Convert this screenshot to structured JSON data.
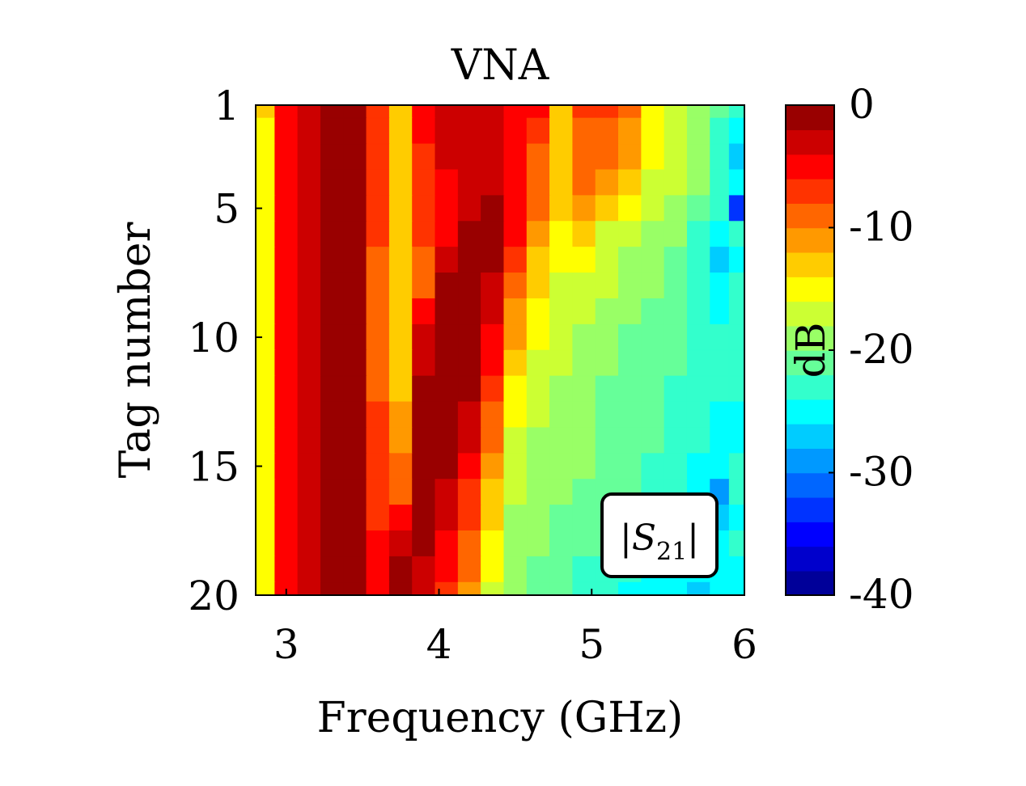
{
  "chart_data": {
    "type": "heatmap",
    "title": "VNA",
    "xlabel": "Frequency (GHz)",
    "ylabel": "Tag number",
    "xlim": [
      2.8,
      6.0
    ],
    "ylim": [
      1,
      20
    ],
    "y_reversed": true,
    "x_ticks": [
      3,
      4,
      5,
      6
    ],
    "x_tick_labels": [
      "3",
      "4",
      "5",
      "6"
    ],
    "y_ticks": [
      1,
      5,
      10,
      15,
      20
    ],
    "y_tick_labels": [
      "1",
      "5",
      "10",
      "15",
      "20"
    ],
    "colorbar": {
      "label": "dB",
      "clim": [
        -40,
        0
      ],
      "ticks": [
        0,
        -10,
        -20,
        -30,
        -40
      ],
      "tick_labels": [
        "0",
        "-10",
        "-20",
        "-30",
        "-40"
      ],
      "levels": 20,
      "colormap": "jet"
    },
    "annotation": {
      "text": "|S21|",
      "base": "S",
      "subscript": "21",
      "position": "bottom-right"
    },
    "value_unit": "dB",
    "freq_grid_GHz": [
      2.85,
      3.0,
      3.15,
      3.3,
      3.45,
      3.6,
      3.75,
      3.9,
      4.05,
      4.2,
      4.35,
      4.5,
      4.65,
      4.8,
      4.95,
      5.1,
      5.25,
      5.4,
      5.55,
      5.7,
      5.85,
      5.95
    ],
    "tags": [
      1,
      2,
      3,
      4,
      5,
      6,
      7,
      8,
      9,
      10,
      11,
      12,
      13,
      14,
      15,
      16,
      17,
      18,
      19,
      20
    ],
    "s21_dB": [
      [
        -14,
        -6,
        -3,
        -1,
        -1,
        -7,
        -13,
        -5,
        -4,
        -4,
        -4,
        -5,
        -6,
        -13,
        -8,
        -8,
        -10,
        -16,
        -17,
        -19,
        -22,
        -24
      ],
      [
        -15,
        -6,
        -3,
        -1,
        -1,
        -8,
        -14,
        -6,
        -4,
        -4,
        -4,
        -5,
        -8,
        -13,
        -9,
        -9,
        -11,
        -16,
        -17,
        -19,
        -24,
        -25
      ],
      [
        -15,
        -6,
        -3,
        -1,
        -1,
        -8,
        -13,
        -7,
        -4,
        -3,
        -3,
        -5,
        -9,
        -13,
        -9,
        -10,
        -12,
        -16,
        -17,
        -19,
        -24,
        -28
      ],
      [
        -15,
        -6,
        -3,
        -1,
        -1,
        -8,
        -13,
        -7,
        -5,
        -3,
        -3,
        -5,
        -9,
        -13,
        -10,
        -11,
        -13,
        -17,
        -18,
        -20,
        -24,
        -25
      ],
      [
        -15,
        -6,
        -3,
        -1,
        -1,
        -8,
        -13,
        -8,
        -5,
        -4,
        -2,
        -5,
        -10,
        -13,
        -11,
        -13,
        -16,
        -17,
        -19,
        -21,
        -24,
        -33
      ],
      [
        -15,
        -6,
        -3,
        -1,
        -1,
        -8,
        -13,
        -8,
        -5,
        -1,
        -1,
        -6,
        -12,
        -15,
        -13,
        -17,
        -18,
        -19,
        -20,
        -23,
        -25,
        -24
      ],
      [
        -15,
        -6,
        -3,
        -1,
        -1,
        -9,
        -14,
        -9,
        -3,
        -1,
        -2,
        -8,
        -13,
        -16,
        -16,
        -18,
        -19,
        -19,
        -21,
        -24,
        -27,
        -25
      ],
      [
        -15,
        -6,
        -3,
        -1,
        -1,
        -9,
        -14,
        -9,
        -2,
        -1,
        -3,
        -9,
        -14,
        -17,
        -17,
        -18,
        -19,
        -20,
        -21,
        -23,
        -26,
        -24
      ],
      [
        -15,
        -6,
        -3,
        -1,
        -1,
        -9,
        -14,
        -6,
        -1,
        -1,
        -4,
        -11,
        -15,
        -17,
        -18,
        -19,
        -20,
        -21,
        -22,
        -24,
        -25,
        -24
      ],
      [
        -15,
        -6,
        -3,
        -1,
        -1,
        -9,
        -14,
        -4,
        -1,
        -1,
        -5,
        -12,
        -16,
        -18,
        -19,
        -20,
        -21,
        -21,
        -22,
        -23,
        -24,
        -24
      ],
      [
        -15,
        -6,
        -3,
        -1,
        -1,
        -9,
        -14,
        -3,
        -1,
        -1,
        -6,
        -13,
        -17,
        -18,
        -19,
        -20,
        -21,
        -22,
        -22,
        -23,
        -24,
        -24
      ],
      [
        -15,
        -6,
        -3,
        -1,
        -1,
        -9,
        -13,
        -2,
        -1,
        -2,
        -8,
        -15,
        -18,
        -19,
        -20,
        -21,
        -21,
        -22,
        -23,
        -24,
        -24,
        -24
      ],
      [
        -15,
        -6,
        -3,
        -1,
        -1,
        -8,
        -12,
        -1,
        -1,
        -3,
        -9,
        -16,
        -18,
        -19,
        -20,
        -21,
        -21,
        -22,
        -23,
        -24,
        -25,
        -25
      ],
      [
        -15,
        -6,
        -3,
        -1,
        -1,
        -8,
        -11,
        -1,
        -1,
        -4,
        -10,
        -17,
        -19,
        -19,
        -20,
        -21,
        -22,
        -22,
        -23,
        -24,
        -26,
        -26
      ],
      [
        -15,
        -6,
        -3,
        -1,
        -1,
        -7,
        -10,
        -1,
        -2,
        -5,
        -12,
        -18,
        -19,
        -20,
        -20,
        -21,
        -22,
        -23,
        -24,
        -25,
        -26,
        -24
      ],
      [
        -15,
        -6,
        -3,
        -1,
        -1,
        -7,
        -9,
        -1,
        -3,
        -7,
        -13,
        -18,
        -20,
        -20,
        -21,
        -21,
        -22,
        -23,
        -24,
        -25,
        -30,
        -24
      ],
      [
        -15,
        -6,
        -3,
        -1,
        -1,
        -7,
        -6,
        -1,
        -4,
        -8,
        -14,
        -19,
        -20,
        -21,
        -21,
        -22,
        -22,
        -23,
        -24,
        -26,
        -27,
        -25
      ],
      [
        -15,
        -6,
        -3,
        -1,
        -1,
        -6,
        -3,
        -2,
        -5,
        -9,
        -15,
        -19,
        -20,
        -21,
        -22,
        -22,
        -23,
        -24,
        -25,
        -26,
        -25,
        -24
      ],
      [
        -15,
        -6,
        -3,
        -1,
        -1,
        -6,
        -2,
        -3,
        -6,
        -10,
        -16,
        -20,
        -21,
        -22,
        -23,
        -23,
        -24,
        -25,
        -26,
        -26,
        -26,
        -26
      ],
      [
        -15,
        -6,
        -3,
        -1,
        -1,
        -6,
        -2,
        -4,
        -7,
        -11,
        -17,
        -20,
        -21,
        -22,
        -23,
        -24,
        -25,
        -25,
        -26,
        -27,
        -26,
        -26
      ]
    ]
  }
}
